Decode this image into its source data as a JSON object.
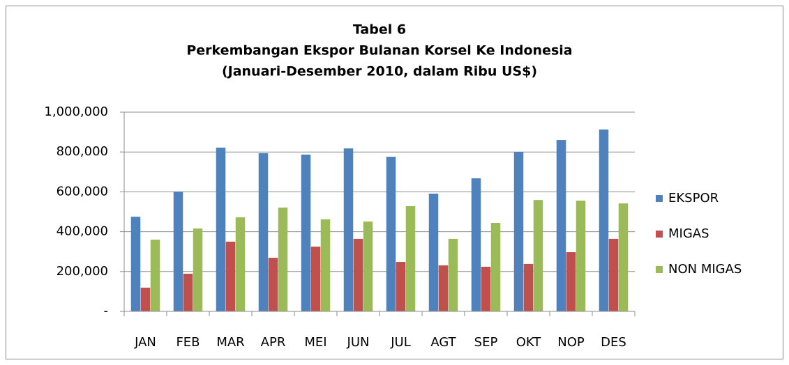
{
  "chart_data": {
    "type": "bar",
    "title": [
      "Tabel 6",
      "Perkembangan Ekspor Bulanan Korsel Ke Indonesia",
      "(Januari-Desember 2010, dalam Ribu US$)"
    ],
    "categories": [
      "JAN",
      "FEB",
      "MAR",
      "APR",
      "MEI",
      "JUN",
      "JUL",
      "AGT",
      "SEP",
      "OKT",
      "NOP",
      "DES"
    ],
    "series": [
      {
        "name": "EKSPOR",
        "color": "#4f81bd",
        "values": [
          475000,
          601000,
          822000,
          794000,
          787000,
          818000,
          776000,
          591000,
          668000,
          801000,
          860000,
          913000
        ]
      },
      {
        "name": "MIGAS",
        "color": "#c0504d",
        "values": [
          119000,
          189000,
          350000,
          269000,
          325000,
          364000,
          248000,
          231000,
          224000,
          238000,
          297000,
          364000
        ]
      },
      {
        "name": "NON MIGAS",
        "color": "#9bbb59",
        "values": [
          360000,
          416000,
          472000,
          521000,
          462000,
          451000,
          528000,
          364000,
          444000,
          559000,
          556000,
          542000
        ]
      }
    ],
    "ylim": [
      0,
      1000000
    ],
    "yticks": [
      {
        "value": 0,
        "label": "-"
      },
      {
        "value": 200000,
        "label": "200,000"
      },
      {
        "value": 400000,
        "label": "400,000"
      },
      {
        "value": 600000,
        "label": "600,000"
      },
      {
        "value": 800000,
        "label": "800,000"
      },
      {
        "value": 1000000,
        "label": "1,000,000"
      }
    ],
    "grid": true,
    "legend": "right"
  }
}
